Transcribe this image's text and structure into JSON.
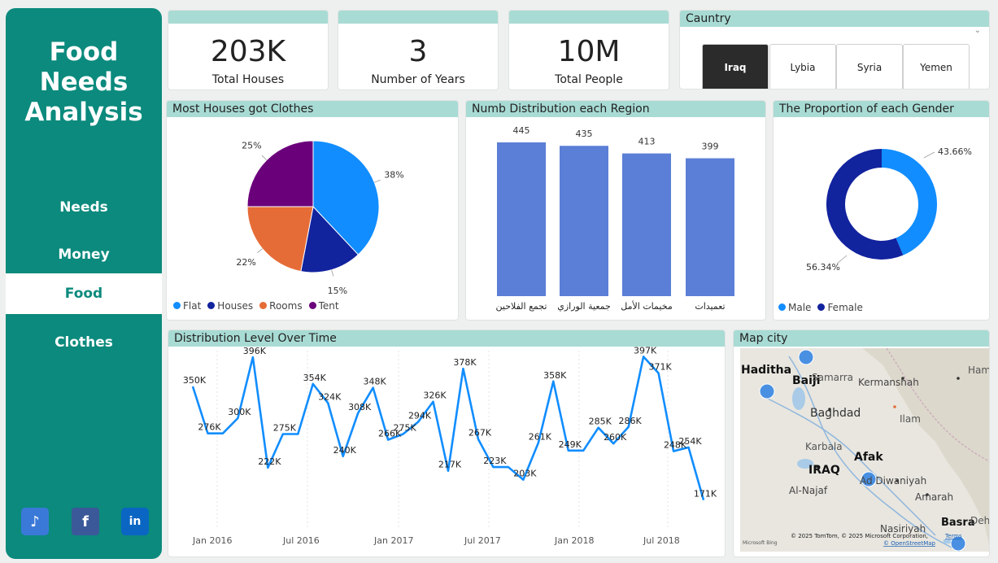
{
  "sidebar": {
    "title_line1": "Food",
    "title_line2": "Needs",
    "title_line3": "Analysis",
    "nav": [
      "Needs",
      "Money",
      "Food",
      "Clothes"
    ],
    "active": "Food"
  },
  "social": {
    "tiktok": "♪",
    "facebook": "f",
    "linkedin": "in"
  },
  "kpis": [
    {
      "value": "203K",
      "label": "Total Houses"
    },
    {
      "value": "3",
      "label": "Number of Years"
    },
    {
      "value": "10M",
      "label": "Total People"
    }
  ],
  "country_slicer": {
    "title": "Caunt ry",
    "title_text": "Cauntry",
    "options": [
      "Iraq",
      "Lybia",
      "Syria",
      "Yemen"
    ],
    "selected": "Iraq"
  },
  "clothes_card": {
    "title": "Most Houses got Clothes",
    "legend": [
      "Flat",
      "Houses",
      "Rooms",
      "Tent"
    ]
  },
  "region_card": {
    "title": "Numb Distribution each Region"
  },
  "gender_card": {
    "title": "The Proportion of each Gender",
    "legend": [
      "Male",
      "Female"
    ]
  },
  "time_card": {
    "title": "Distribution Level Over Time",
    "xticks": [
      "Jan 2016",
      "Jul 2016",
      "Jan 2017",
      "Jul 2017",
      "Jan 2018",
      "Jul 2018"
    ]
  },
  "map_card": {
    "title": "Map city",
    "cities_bold": [
      "Haditha",
      "Baiji",
      "Afak",
      "IRAQ",
      "Basra"
    ],
    "places": [
      "Samarra",
      "Kermanshah",
      "Hame",
      "Baghdad",
      "Ilam",
      "Karbala",
      "Ad Diwaniyah",
      "Al-Najaf",
      "Amarah",
      "Nasiriyah",
      "Dehl"
    ],
    "copyright": "© 2025 TomTom, © 2025 Microsoft Corporation,",
    "terms": "Terms",
    "osm": "© OpenStreetMap",
    "bing": "Microsoft Bing"
  },
  "colors": {
    "teal": "#0b8a7d",
    "header": "#a8dbd4",
    "flat": "#118dff",
    "houses": "#12239e",
    "rooms": "#e66c37",
    "tent": "#6b007b",
    "bar": "#5b7fd6",
    "line": "#118dff"
  },
  "chart_data": [
    {
      "type": "pie",
      "title": "Most Houses got Clothes",
      "categories": [
        "Flat",
        "Houses",
        "Rooms",
        "Tent"
      ],
      "values": [
        38,
        15,
        22,
        25
      ],
      "labels": [
        "38%",
        "15%",
        "22%",
        "25%"
      ]
    },
    {
      "type": "bar",
      "title": "Numb Distribution each Region",
      "categories": [
        "تجمع الفلاحين",
        "جمعية الورازي",
        "مخيمات الأمل",
        "تعميدات"
      ],
      "values": [
        445,
        435,
        413,
        399
      ],
      "labels": [
        "445",
        "435",
        "413",
        "399"
      ],
      "ylim": [
        0,
        445
      ]
    },
    {
      "type": "pie",
      "title": "The Proportion of each Gender",
      "categories": [
        "Male",
        "Female"
      ],
      "values": [
        43.66,
        56.34
      ],
      "labels": [
        "43.66%",
        "56.34%"
      ]
    },
    {
      "type": "line",
      "title": "Distribution Level Over Time",
      "xticks": [
        "Jan 2016",
        "Jul 2016",
        "Jan 2017",
        "Jul 2017",
        "Jan 2018",
        "Jul 2018"
      ],
      "values": [
        350,
        276,
        276,
        300,
        396,
        222,
        275,
        275,
        354,
        324,
        240,
        308,
        348,
        266,
        275,
        294,
        326,
        217,
        378,
        267,
        223,
        223,
        203,
        261,
        358,
        249,
        249,
        285,
        260,
        286,
        397,
        371,
        248,
        254,
        171
      ],
      "labels": [
        "350K",
        "276K",
        "",
        "300K",
        "396K",
        "222K",
        "275K",
        "",
        "354K",
        "324K",
        "240K",
        "308K",
        "348K",
        "266K",
        "275K",
        "294K",
        "326K",
        "217K",
        "378K",
        "267K",
        "223K",
        "",
        "203K",
        "261K",
        "358K",
        "249K",
        "",
        "285K",
        "260K",
        "286K",
        "397K",
        "371K",
        "248K",
        "254K",
        "171K"
      ],
      "ylim": [
        150,
        400
      ]
    }
  ]
}
